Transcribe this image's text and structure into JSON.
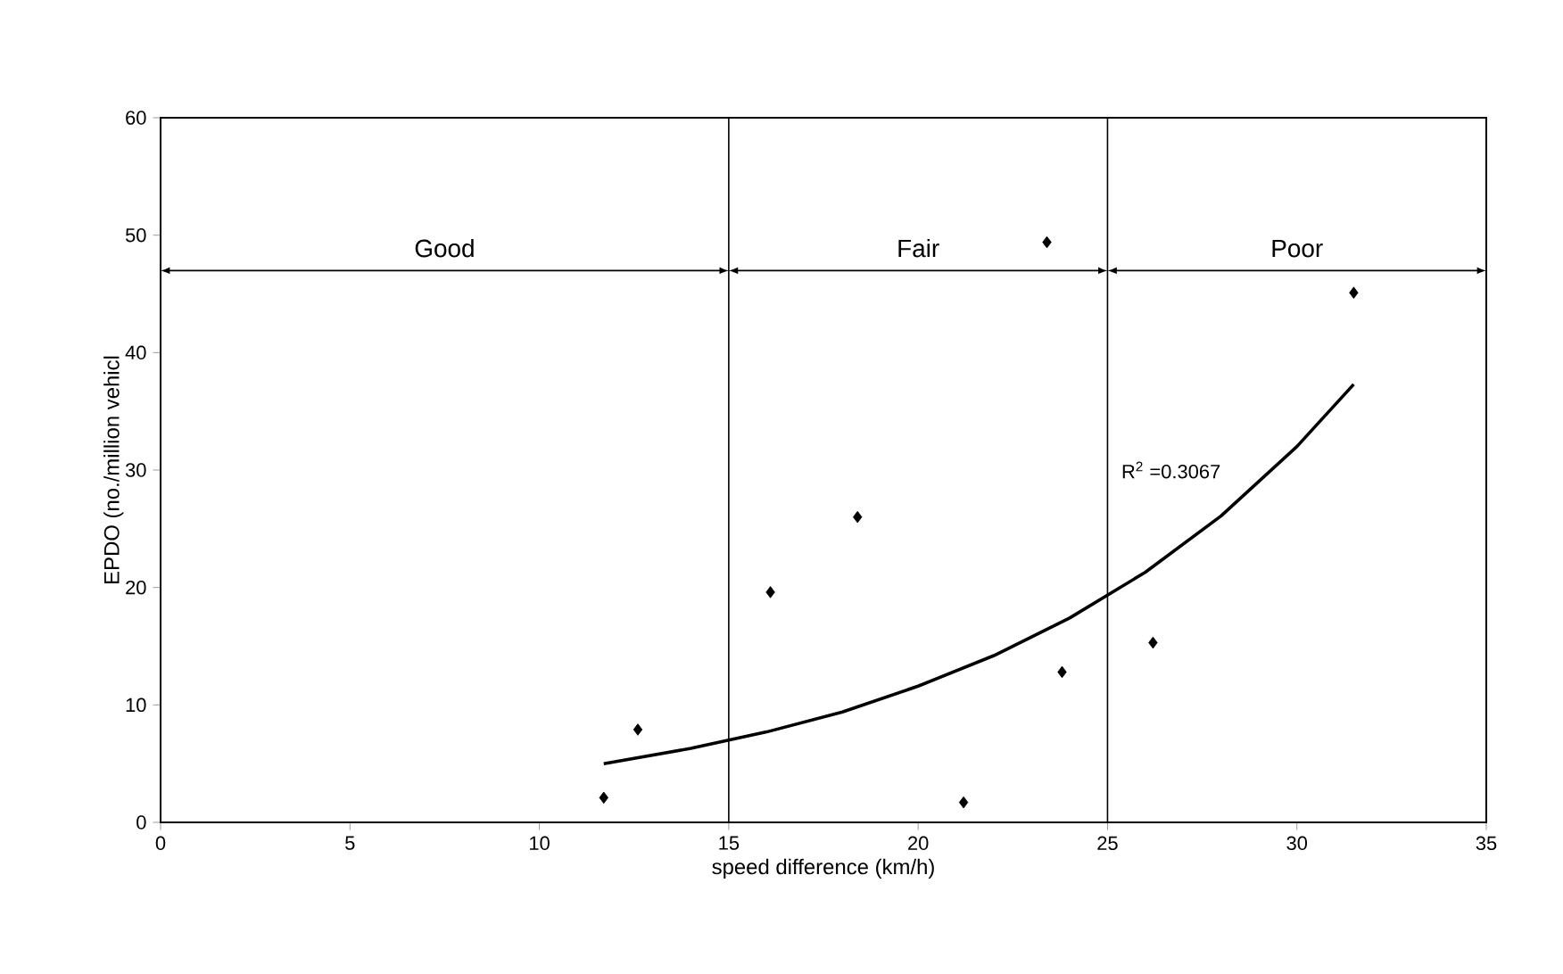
{
  "chart_data": {
    "type": "scatter",
    "xlabel": "speed difference (km/h)",
    "ylabel": "EPDO (no./million vehicl",
    "xlim": [
      0,
      35
    ],
    "ylim": [
      0,
      60
    ],
    "xticks": [
      0,
      5,
      10,
      15,
      20,
      25,
      30,
      35
    ],
    "yticks": [
      0,
      10,
      20,
      30,
      40,
      50,
      60
    ],
    "grid": false,
    "marker": "diamond",
    "series": [
      {
        "color": "#000000",
        "x": [
          11.7,
          12.6,
          16.1,
          18.4,
          21.2,
          23.4,
          23.8,
          26.2,
          31.5
        ],
        "values": [
          2.1,
          7.9,
          19.6,
          26.0,
          1.7,
          49.4,
          12.8,
          15.3,
          45.1
        ]
      },
      {
        "type": "line",
        "color": "#000000",
        "marker": "none",
        "line_style": "solid",
        "x": [
          11.7,
          14,
          16,
          18,
          20,
          22,
          24,
          26,
          28,
          30,
          31.5
        ],
        "values": [
          5.0,
          6.3,
          7.7,
          9.4,
          11.6,
          14.2,
          17.4,
          21.3,
          26.1,
          32.0,
          37.3
        ]
      }
    ],
    "ref_lines": [
      {
        "axis": "x",
        "value": 15
      },
      {
        "axis": "x",
        "value": 25
      }
    ],
    "annotations": [
      "Good",
      "Fair",
      "Poor",
      "R$^{2}$ =0.3067"
    ]
  }
}
